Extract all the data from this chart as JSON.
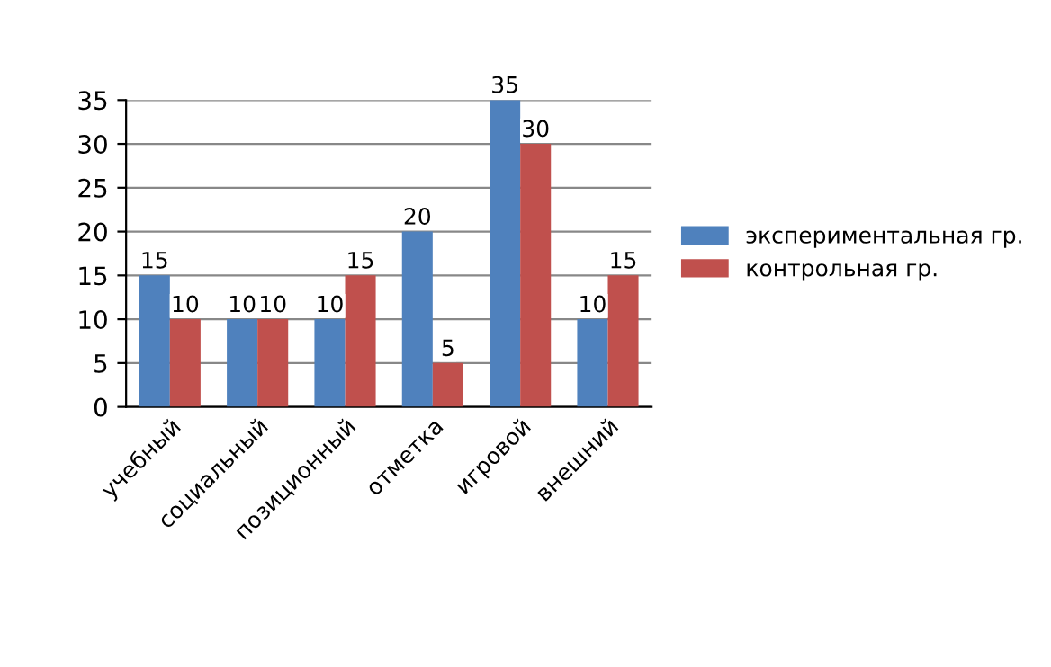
{
  "chart_data": {
    "type": "bar",
    "categories": [
      "учебный",
      "социальный",
      "позиционный",
      "отметка",
      "игровой",
      "внешний"
    ],
    "series": [
      {
        "name": "экспериментальная гр.",
        "color": "#4f81bd",
        "values": [
          15,
          10,
          10,
          20,
          35,
          10
        ]
      },
      {
        "name": "контрольная гр.",
        "color": "#c0504d",
        "values": [
          10,
          10,
          15,
          5,
          30,
          15
        ]
      }
    ],
    "ylim": [
      0,
      35
    ],
    "yticks": [
      0,
      5,
      10,
      15,
      20,
      25,
      30,
      35
    ],
    "grid": "y",
    "legend": "right",
    "data_labels": true
  }
}
